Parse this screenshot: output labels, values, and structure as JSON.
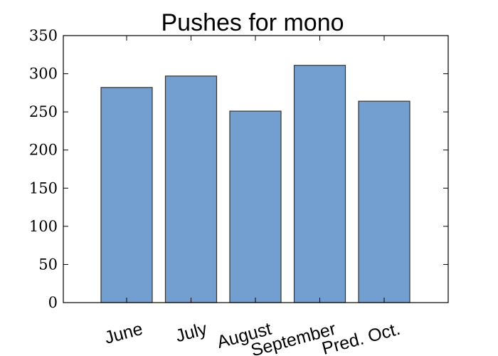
{
  "chart_data": {
    "type": "bar",
    "title": "Pushes for mono",
    "categories": [
      "June",
      "July",
      "August",
      "September",
      "Pred. Oct."
    ],
    "values": [
      282,
      297,
      251,
      311,
      264
    ],
    "yticks": [
      "0",
      "50",
      "100",
      "150",
      "200",
      "250",
      "300",
      "350"
    ],
    "ylim": [
      0,
      350
    ],
    "xlabel": "",
    "ylabel": "",
    "grid": false,
    "bar_color": "#729fcf",
    "edge_color": "#333333"
  }
}
